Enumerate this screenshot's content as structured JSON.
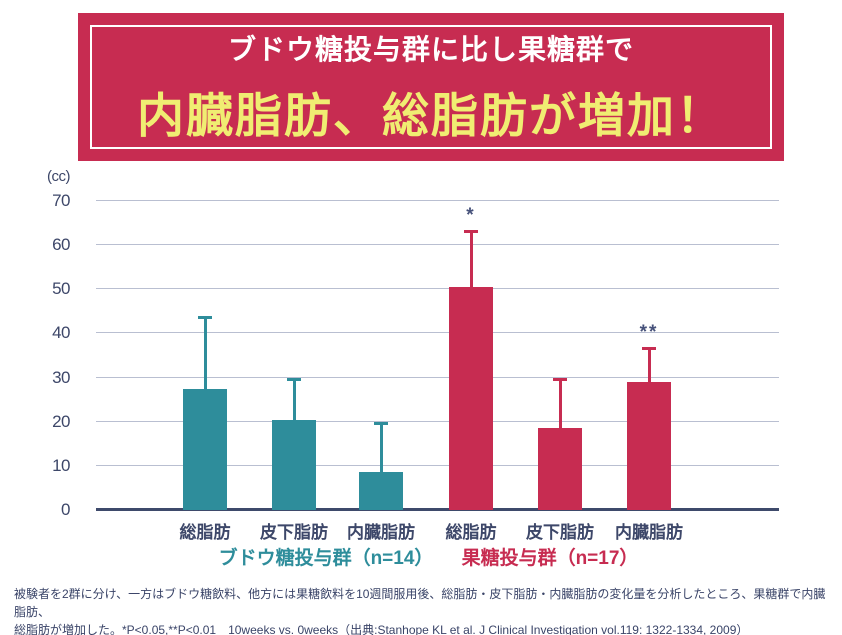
{
  "banner": {
    "line1": "ブドウ糖投与群に比し果糖群で",
    "line2": "内臓脂肪、総脂肪が増加！",
    "bg_color": "#C72C51",
    "line1_color": "#FFFFFF",
    "line2_color": "#F0ED72"
  },
  "chart_data": {
    "type": "bar",
    "unit_label": "(cc)",
    "ylabel": "",
    "ylim": [
      0,
      70
    ],
    "ytick_interval": 10,
    "grid": true,
    "categories": [
      "総脂肪",
      "皮下脂肪",
      "内臓脂肪",
      "総脂肪",
      "皮下脂肪",
      "内臓脂肪"
    ],
    "series": [
      {
        "name": "ブドウ糖投与群（n=14）",
        "color": "#2E8D9B",
        "values": [
          27.5,
          20.5,
          8.5
        ],
        "error_tops": [
          44,
          30,
          20
        ],
        "annotations": [
          "",
          "",
          ""
        ]
      },
      {
        "name": "果糖投与群（n=17）",
        "color": "#C72C51",
        "values": [
          50.5,
          18.5,
          29
        ],
        "error_tops": [
          63.5,
          30,
          37
        ],
        "annotations": [
          "*",
          "",
          "**"
        ]
      }
    ],
    "groups": [
      {
        "label": "ブドウ糖投与群（n=14）",
        "color": "#2E8D9B"
      },
      {
        "label": "果糖投与群（n=17）",
        "color": "#C72C51"
      }
    ],
    "annotation_color": "#46517A",
    "gridline_color": "#B9BFD1",
    "axis_color": "#3E4A6B"
  },
  "footnote": {
    "line1": "被験者を2群に分け、一方はブドウ糖飲料、他方には果糖飲料を10週間服用後、総脂肪・皮下脂肪・内臓脂肪の変化量を分析したところ、果糖群で内臓脂肪、",
    "line2": "総脂肪が増加した。*P<0.05,**P<0.01　10weeks vs. 0weeks（出典:Stanhope KL et al. J Clinical Investigation vol.119: 1322-1334, 2009）"
  }
}
